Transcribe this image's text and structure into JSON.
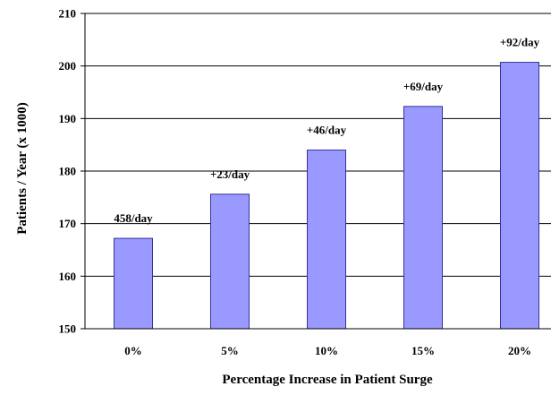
{
  "chart_data": {
    "type": "bar",
    "title": "",
    "xlabel": "Percentage Increase in Patient Surge",
    "ylabel": "Patients / Year (x 1000)",
    "categories": [
      "0%",
      "5%",
      "10%",
      "15%",
      "20%"
    ],
    "values": [
      167.2,
      175.6,
      184.0,
      192.3,
      200.7
    ],
    "data_labels": [
      "458/day",
      "+23/day",
      "+46/day",
      "+69/day",
      "+92/day"
    ],
    "ylim": [
      150,
      210
    ],
    "yticks": [
      150,
      160,
      170,
      180,
      190,
      200,
      210
    ],
    "grid": true,
    "legend": "none",
    "colors": {
      "bar_fill": "#9999ff",
      "bar_stroke": "#333399",
      "grid": "#000000",
      "axis": "#000000"
    }
  }
}
